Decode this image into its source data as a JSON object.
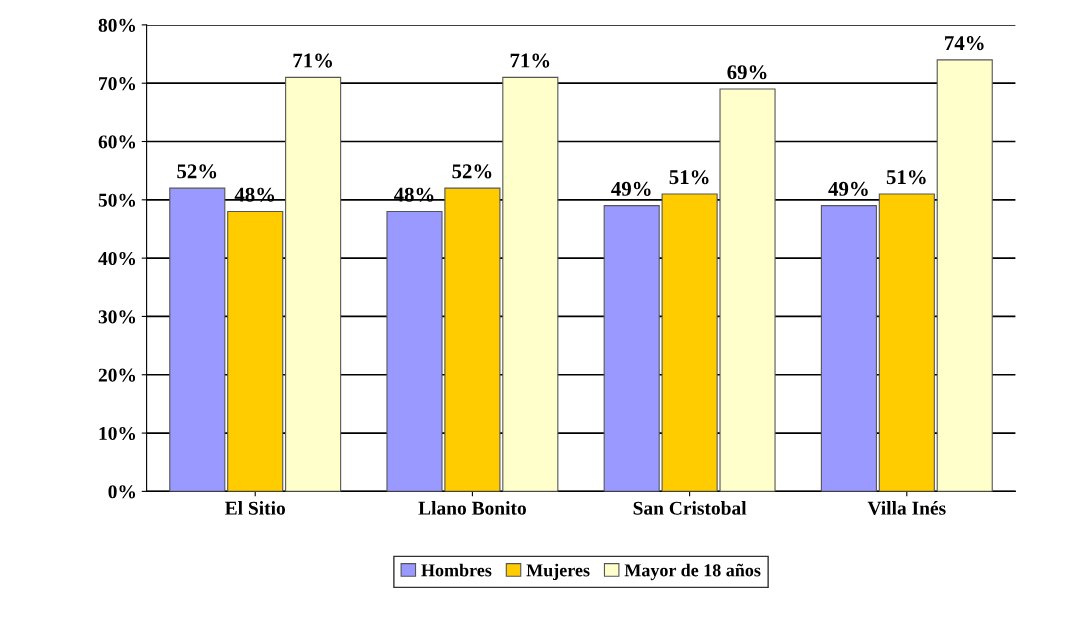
{
  "chart_data": {
    "type": "bar",
    "categories": [
      "El Sitio",
      "Llano Bonito",
      "San Cristobal",
      "Villa Inés"
    ],
    "series": [
      {
        "name": "Hombres",
        "color": "#9999ff",
        "values": [
          52,
          48,
          49,
          49
        ],
        "value_labels": [
          "52%",
          "48%",
          "49%",
          "49%"
        ]
      },
      {
        "name": "Mujeres",
        "color": "#ffcc00",
        "values": [
          48,
          52,
          51,
          51
        ],
        "value_labels": [
          "48%",
          "52%",
          "51%",
          "51%"
        ]
      },
      {
        "name": "Mayor de 18 años",
        "color": "#ffffcc",
        "values": [
          71,
          71,
          69,
          74
        ],
        "value_labels": [
          "71%",
          "71%",
          "69%",
          "74%"
        ]
      }
    ],
    "ylim": [
      0,
      80
    ],
    "yticks": [
      {
        "value": 0,
        "label": "0%"
      },
      {
        "value": 10,
        "label": "10%"
      },
      {
        "value": 20,
        "label": "20%"
      },
      {
        "value": 30,
        "label": "30%"
      },
      {
        "value": 40,
        "label": "40%"
      },
      {
        "value": 50,
        "label": "50%"
      },
      {
        "value": 60,
        "label": "60%"
      },
      {
        "value": 70,
        "label": "70%"
      },
      {
        "value": 80,
        "label": "80%"
      }
    ],
    "grid": "y",
    "legend": "bottom"
  }
}
